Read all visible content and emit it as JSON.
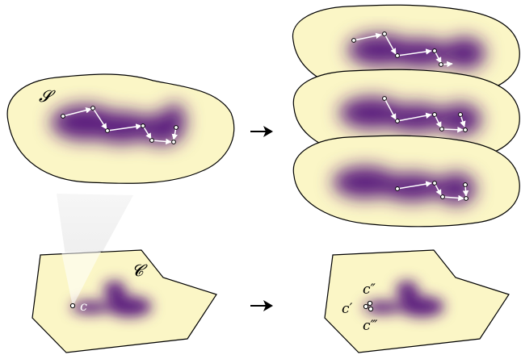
{
  "labels": {
    "set_s": "𝓢",
    "set_c_left": "𝓒",
    "point_c": "c",
    "point_c_prime": "c′",
    "point_c_double_prime": "c″",
    "point_c_triple_prime": "c‴"
  },
  "colors": {
    "region_fill": "#fbf6c6",
    "region_stroke": "#000000",
    "density_core": "#5b1e7e",
    "path_arrow": "#ffffff",
    "arrow": "#000000",
    "projection_cone": "#cfcfcf"
  },
  "icons": [
    "right-arrow-icon",
    "right-arrow-icon"
  ]
}
